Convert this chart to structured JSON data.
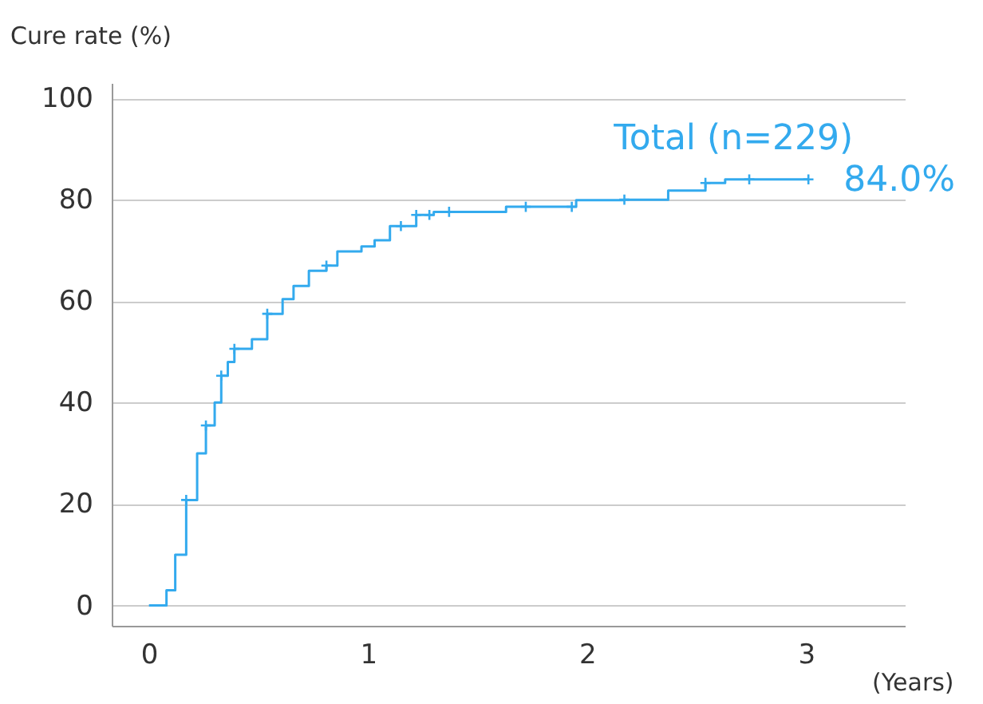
{
  "chart_data": {
    "type": "step",
    "ylabel": "Cure rate (%)",
    "xlabel": "(Years)",
    "xlim": [
      -0.17,
      3.45
    ],
    "xticks": [
      0,
      1,
      2,
      3
    ],
    "ylim": [
      -4,
      103
    ],
    "yticks": [
      0,
      20,
      40,
      60,
      80,
      100
    ],
    "grid": "y",
    "line_style": "solid",
    "series": [
      {
        "name": "Total (n=229)",
        "color": "#33aaee",
        "x": [
          0,
          0.07,
          0.08,
          0.12,
          0.17,
          0.22,
          0.26,
          0.3,
          0.33,
          0.36,
          0.39,
          0.47,
          0.54,
          0.61,
          0.66,
          0.73,
          0.81,
          0.86,
          0.97,
          1.03,
          1.1,
          1.22,
          1.3,
          1.63,
          1.95,
          2.17,
          2.37,
          2.54,
          2.63,
          3.01
        ],
        "values": [
          0,
          0,
          3,
          10,
          20.8,
          30,
          35.5,
          40,
          45.3,
          48,
          50.6,
          52.5,
          57.5,
          60.4,
          63,
          66,
          67,
          69.8,
          70.8,
          72,
          74.8,
          77,
          77.6,
          78.6,
          79.9,
          80,
          81.8,
          83.3,
          84,
          84
        ]
      },
      {
        "type": "scatter",
        "marker": "cross",
        "color": "#33aaee",
        "x": [
          0.17,
          0.26,
          0.33,
          0.39,
          0.54,
          0.81,
          1.15,
          1.22,
          1.28,
          1.37,
          1.72,
          1.93,
          2.17,
          2.54,
          2.74,
          3.01
        ],
        "values": [
          20.8,
          35.5,
          45.3,
          50.6,
          57.5,
          67,
          74.8,
          77,
          77,
          77.6,
          78.6,
          78.6,
          80,
          83.3,
          84,
          84
        ]
      }
    ],
    "annotations": [
      {
        "text": "84.0%",
        "x": 3.01,
        "y": 84
      }
    ]
  }
}
